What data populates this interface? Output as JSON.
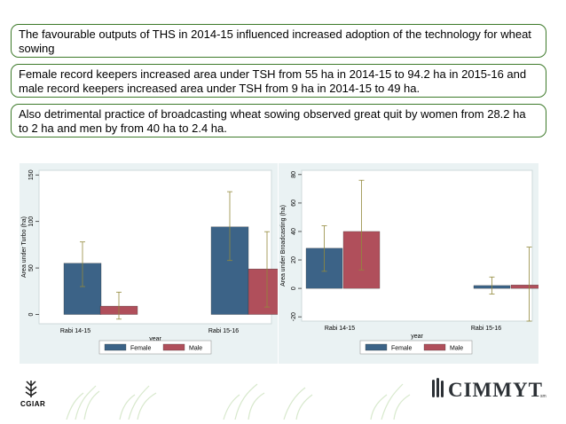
{
  "bullets": [
    "The favourable outputs of THS in 2014-15 influenced increased adoption of the technology for wheat sowing",
    "Female record keepers increased area under TSH from 55 ha in 2014-15 to 94.2 ha in 2015-16 and male record keepers increased area under TSH from 9 ha in 2014-15 to 49 ha.",
    "Also detrimental practice of broadcasting wheat sowing observed great quit by women from 28.2 ha to 2 ha and men by from 40 ha to 2.4 ha."
  ],
  "colors": {
    "female": "#3c6387",
    "male": "#b04f5b",
    "frame": "#3d7a2a",
    "panel": "#eaf2f3",
    "error": "#938a3c"
  },
  "chart_data": [
    {
      "type": "bar",
      "title": "",
      "xlabel": "year",
      "ylabel": "Area under Turbo (ha)",
      "categories": [
        "Rabi 14-15",
        "Rabi 15-16"
      ],
      "series": [
        {
          "name": "Female",
          "values": [
            55,
            94.2
          ],
          "err_low": [
            30,
            58
          ],
          "err_high": [
            78,
            132
          ]
        },
        {
          "name": "Male",
          "values": [
            9,
            49
          ],
          "err_low": [
            -5,
            8
          ],
          "err_high": [
            24,
            89
          ]
        }
      ],
      "ylim": [
        -10,
        155
      ],
      "yticks": [
        0,
        50,
        100,
        150
      ],
      "legend": [
        "Female",
        "Male"
      ],
      "legend_position": "bottom"
    },
    {
      "type": "bar",
      "title": "",
      "xlabel": "year",
      "ylabel": "Area under Broadcasting (ha)",
      "categories": [
        "Rabi 14-15",
        "Rabi 15-16"
      ],
      "series": [
        {
          "name": "Female",
          "values": [
            28.2,
            2
          ],
          "err_low": [
            12,
            -4
          ],
          "err_high": [
            44,
            8
          ]
        },
        {
          "name": "Male",
          "values": [
            40,
            2.4
          ],
          "err_low": [
            13,
            -23
          ],
          "err_high": [
            76,
            29
          ]
        }
      ],
      "ylim": [
        -23,
        83
      ],
      "yticks": [
        -20,
        0,
        20,
        40,
        60,
        80
      ],
      "legend": [
        "Female",
        "Male"
      ],
      "legend_position": "bottom"
    }
  ],
  "footer": {
    "left_logo": "CGIAR",
    "right_logo": "CIMMYT",
    "trademark": "sm"
  }
}
